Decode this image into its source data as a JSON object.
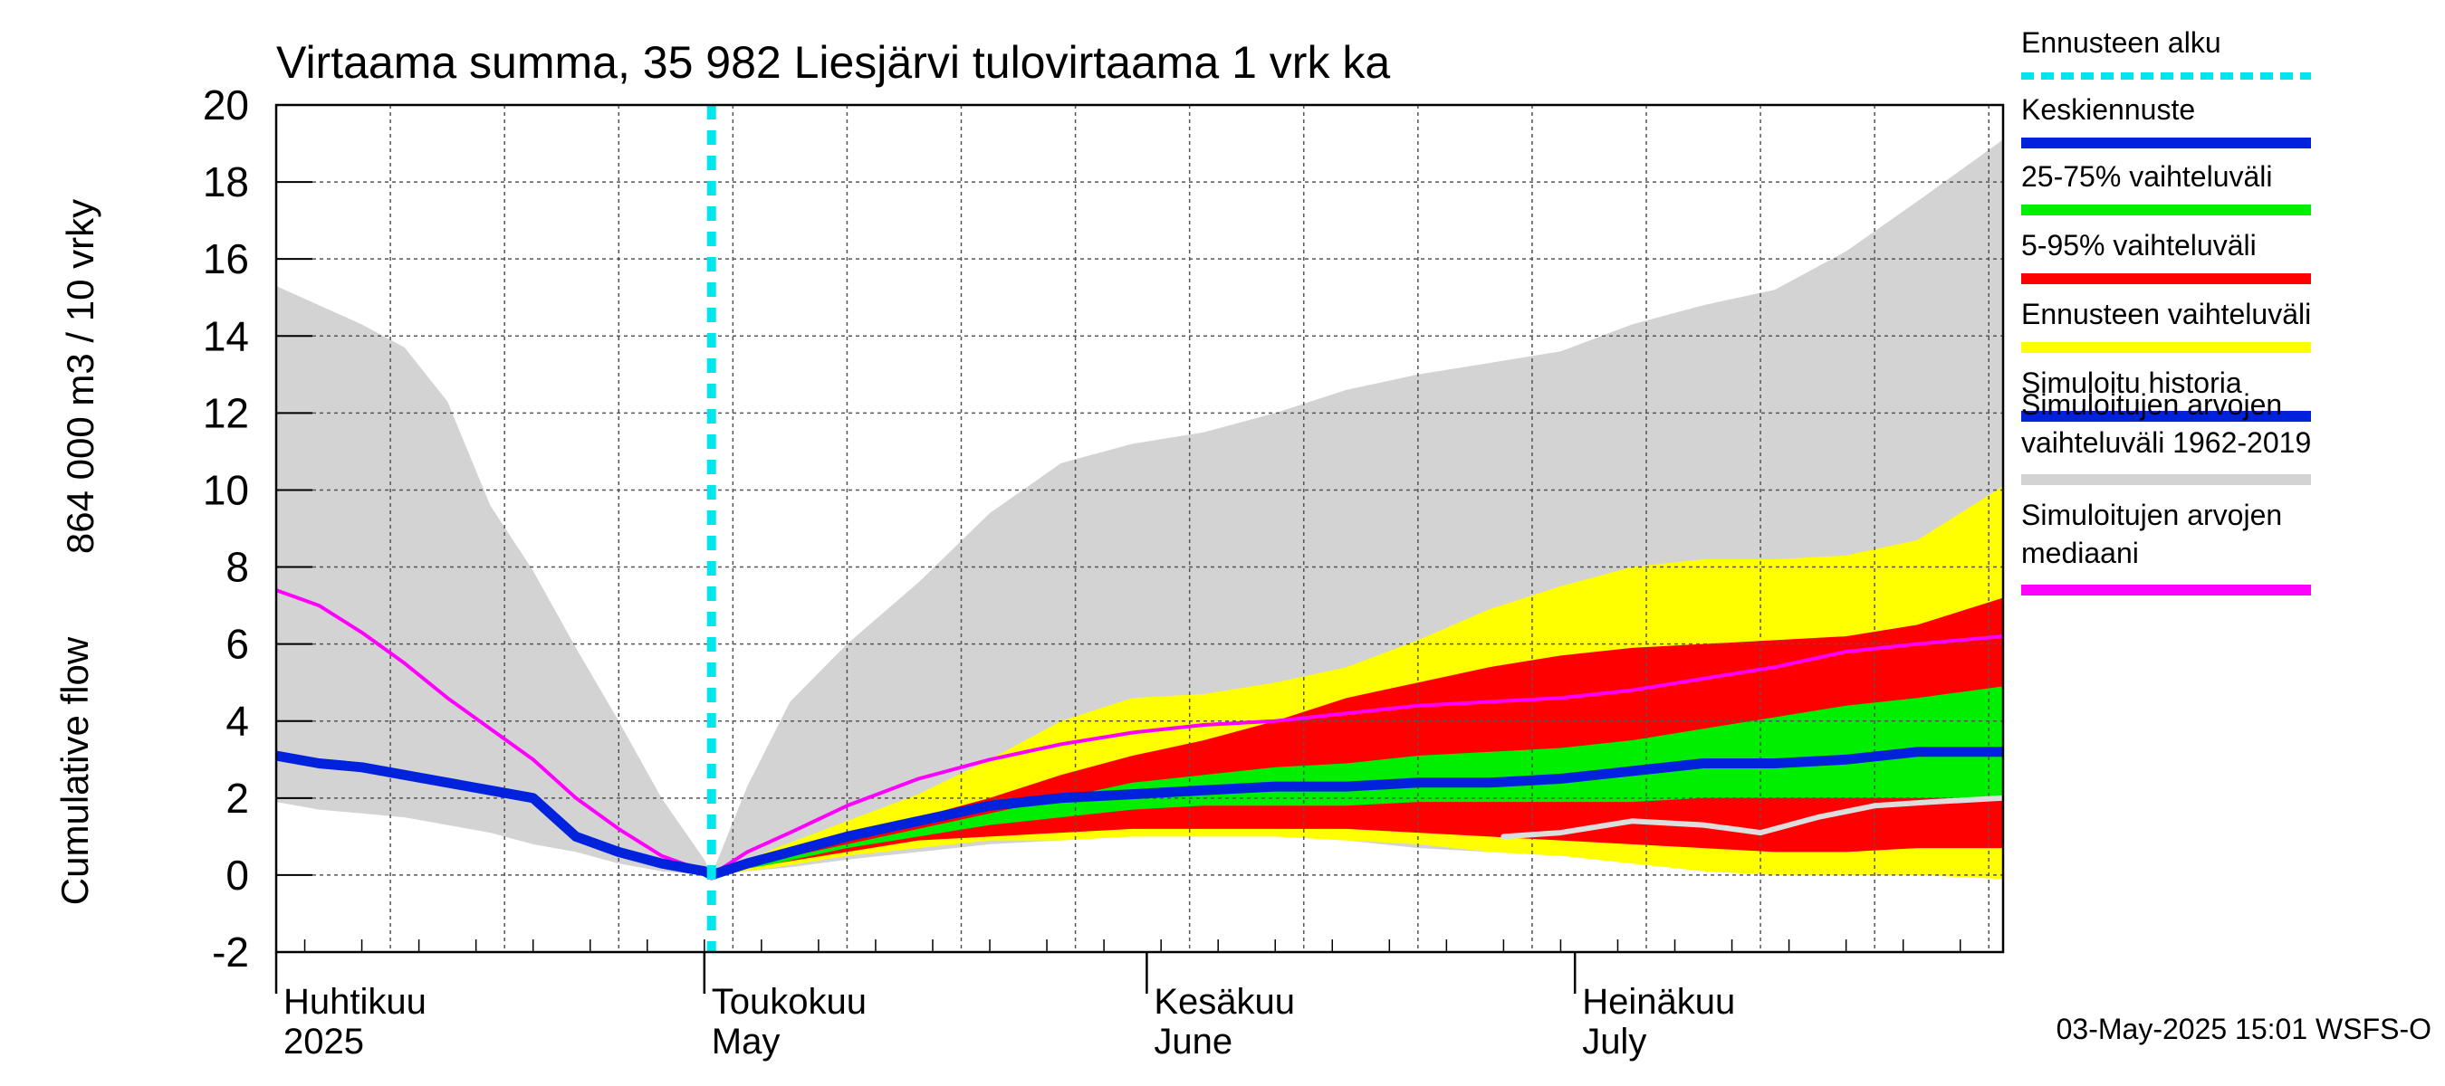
{
  "chart_data": {
    "type": "area",
    "title": "Virtaama summa, 35 982 Liesjärvi tulovirtaama 1 vrk ka",
    "ylabel_primary": "864 000 m3 / 10 vrky",
    "ylabel_secondary": "Cumulative flow",
    "ylim": [
      -2,
      20
    ],
    "yticks": [
      -2,
      0,
      2,
      4,
      6,
      8,
      10,
      12,
      14,
      16,
      18,
      20
    ],
    "x_start_day": 0,
    "x_end_day": 121,
    "forecast_start_day": 30.5,
    "month_labels": [
      {
        "day": 0,
        "fi": "Huhtikuu",
        "en": "2025"
      },
      {
        "day": 30,
        "fi": "Toukokuu",
        "en": "May"
      },
      {
        "day": 61,
        "fi": "Kesäkuu",
        "en": "June"
      },
      {
        "day": 91,
        "fi": "Heinäkuu",
        "en": "July"
      }
    ],
    "timestamp": "03-May-2025 15:01 WSFS-O",
    "legend": [
      {
        "label": "Ennusteen alku",
        "color": "#00e5ee",
        "style": "dashed"
      },
      {
        "label": "Keskiennuste",
        "color": "#0022dd",
        "style": "solid"
      },
      {
        "label": "25-75% vaihteluväli",
        "color": "#00ee00",
        "style": "solid"
      },
      {
        "label": "5-95% vaihteluväli",
        "color": "#ff0000",
        "style": "solid"
      },
      {
        "label": "Ennusteen vaihteluväli",
        "color": "#ffff00",
        "style": "solid"
      },
      {
        "label": "Simuloitu historia",
        "color": "#0022dd",
        "style": "solid"
      },
      {
        "label": "Simuloitujen arvojen vaihteluväli 1962-2019",
        "color": "#d3d3d3",
        "style": "solid"
      },
      {
        "label": "Simuloitujen arvojen mediaani",
        "color": "#ff00ff",
        "style": "solid"
      }
    ],
    "series": [
      {
        "key": "hist_range",
        "color": "#d3d3d3",
        "x": [
          0,
          3,
          6,
          9,
          12,
          15,
          18,
          21,
          24,
          27,
          30,
          30.5,
          33,
          36,
          40,
          45,
          50,
          55,
          60,
          65,
          70,
          75,
          80,
          85,
          90,
          95,
          100,
          105,
          110,
          115,
          121
        ],
        "upper": [
          15.3,
          14.8,
          14.3,
          13.7,
          12.3,
          9.6,
          7.9,
          5.9,
          4.0,
          2.0,
          0.4,
          0.0,
          2.3,
          4.5,
          6.0,
          7.6,
          9.4,
          10.7,
          11.2,
          11.5,
          12.0,
          12.6,
          13.0,
          13.3,
          13.6,
          14.3,
          14.8,
          15.2,
          16.2,
          17.5,
          19.1
        ],
        "lower": [
          1.9,
          1.7,
          1.6,
          1.5,
          1.3,
          1.1,
          0.8,
          0.6,
          0.3,
          0.1,
          0.0,
          0.0,
          0.1,
          0.2,
          0.4,
          0.6,
          0.8,
          0.9,
          1.0,
          1.0,
          1.0,
          0.9,
          0.7,
          0.6,
          0.5,
          0.4,
          0.2,
          0.1,
          0.0,
          0.0,
          0.0
        ]
      },
      {
        "key": "forecast_range",
        "color": "#ffff00",
        "x": [
          30.5,
          35,
          40,
          45,
          50,
          55,
          60,
          65,
          70,
          75,
          80,
          85,
          90,
          95,
          100,
          105,
          110,
          115,
          121
        ],
        "upper": [
          0.0,
          0.7,
          1.4,
          2.1,
          3.0,
          4.0,
          4.6,
          4.7,
          5.0,
          5.4,
          6.1,
          6.9,
          7.5,
          8.0,
          8.2,
          8.2,
          8.3,
          8.7,
          10.1
        ],
        "lower": [
          0.0,
          0.2,
          0.5,
          0.7,
          0.9,
          0.9,
          1.0,
          1.0,
          1.0,
          0.9,
          0.8,
          0.6,
          0.5,
          0.3,
          0.1,
          0.0,
          0.0,
          0.0,
          -0.1
        ]
      },
      {
        "key": "p5_95",
        "color": "#ff0000",
        "x": [
          30.5,
          35,
          40,
          45,
          50,
          55,
          60,
          65,
          70,
          75,
          80,
          85,
          90,
          95,
          100,
          105,
          110,
          115,
          121
        ],
        "upper": [
          0.0,
          0.6,
          1.1,
          1.5,
          2.0,
          2.6,
          3.1,
          3.5,
          4.0,
          4.6,
          5.0,
          5.4,
          5.7,
          5.9,
          6.0,
          6.1,
          6.2,
          6.5,
          7.2
        ],
        "lower": [
          0.0,
          0.3,
          0.6,
          0.9,
          1.0,
          1.1,
          1.2,
          1.2,
          1.2,
          1.2,
          1.1,
          1.0,
          0.9,
          0.8,
          0.7,
          0.6,
          0.6,
          0.7,
          0.7
        ]
      },
      {
        "key": "p25_75",
        "color": "#00ee00",
        "x": [
          30.5,
          35,
          40,
          45,
          50,
          55,
          60,
          65,
          70,
          75,
          80,
          85,
          90,
          95,
          100,
          105,
          110,
          115,
          121
        ],
        "upper": [
          0.0,
          0.4,
          0.8,
          1.2,
          1.6,
          2.0,
          2.4,
          2.6,
          2.8,
          2.9,
          3.1,
          3.2,
          3.3,
          3.5,
          3.8,
          4.1,
          4.4,
          4.6,
          4.9
        ],
        "lower": [
          0.0,
          0.3,
          0.7,
          1.0,
          1.3,
          1.5,
          1.7,
          1.8,
          1.8,
          1.8,
          1.9,
          1.9,
          1.9,
          1.9,
          2.0,
          2.0,
          2.0,
          2.0,
          2.0
        ]
      },
      {
        "key": "history_median",
        "color": "#ff00ff",
        "x": [
          0,
          3,
          6,
          9,
          12,
          15,
          18,
          21,
          24,
          27,
          30,
          30.5,
          33,
          36,
          40,
          45,
          50,
          55,
          60,
          65,
          70,
          75,
          80,
          85,
          90,
          95,
          100,
          105,
          110,
          115,
          121
        ],
        "y": [
          7.4,
          7.0,
          6.3,
          5.5,
          4.6,
          3.8,
          3.0,
          2.0,
          1.2,
          0.5,
          0.1,
          0.0,
          0.6,
          1.1,
          1.8,
          2.5,
          3.0,
          3.4,
          3.7,
          3.9,
          4.0,
          4.2,
          4.4,
          4.5,
          4.6,
          4.8,
          5.1,
          5.4,
          5.8,
          6.0,
          6.2
        ]
      },
      {
        "key": "history_sim",
        "color": "#dddddd",
        "x": [
          86,
          90,
          95,
          100,
          104,
          108,
          112,
          116,
          121
        ],
        "y": [
          1.0,
          1.1,
          1.4,
          1.3,
          1.1,
          1.5,
          1.8,
          1.9,
          2.0
        ]
      },
      {
        "key": "mean_forecast",
        "color": "#0022dd",
        "x": [
          0,
          3,
          6,
          9,
          12,
          15,
          18,
          21,
          24,
          27,
          30,
          30.5,
          33,
          36,
          40,
          45,
          50,
          55,
          60,
          65,
          70,
          75,
          80,
          85,
          90,
          95,
          100,
          105,
          110,
          115,
          121
        ],
        "y": [
          3.1,
          2.9,
          2.8,
          2.6,
          2.4,
          2.2,
          2.0,
          1.0,
          0.6,
          0.3,
          0.1,
          0.0,
          0.3,
          0.6,
          1.0,
          1.4,
          1.8,
          2.0,
          2.1,
          2.2,
          2.3,
          2.3,
          2.4,
          2.4,
          2.5,
          2.7,
          2.9,
          2.9,
          3.0,
          3.2,
          3.2
        ]
      }
    ]
  }
}
